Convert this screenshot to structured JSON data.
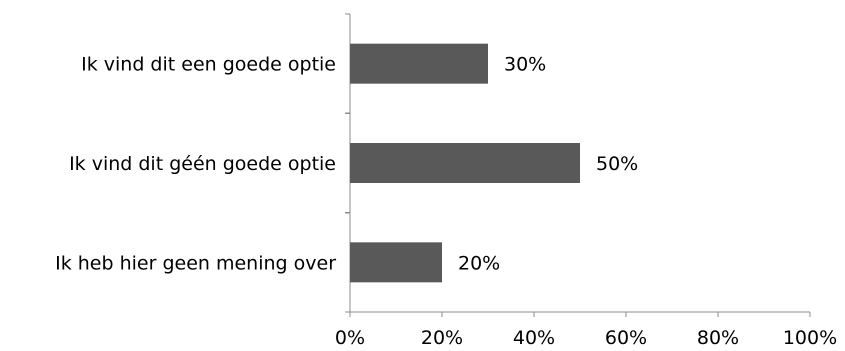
{
  "chart_data": {
    "type": "bar",
    "orientation": "horizontal",
    "categories": [
      "Ik vind dit een goede optie",
      "Ik vind dit géén goede optie",
      "Ik heb hier geen mening over"
    ],
    "values": [
      30,
      50,
      20
    ],
    "data_labels": [
      "30%",
      "50%",
      "20%"
    ],
    "xlim": [
      0,
      100
    ],
    "x_ticks": [
      0,
      20,
      40,
      60,
      80,
      100
    ],
    "x_tick_labels": [
      "0%",
      "20%",
      "40%",
      "60%",
      "80%",
      "100%"
    ],
    "grid": false,
    "legend": "none",
    "colors": {
      "bar": "#595959",
      "axis": "#8c8c8c",
      "text": "#000000"
    }
  }
}
